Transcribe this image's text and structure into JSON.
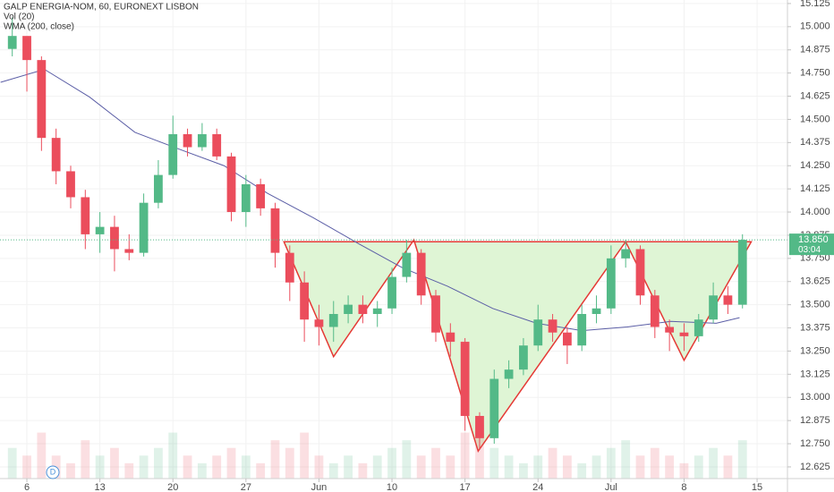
{
  "chart_data": {
    "type": "candlestick",
    "title": "GALP ENERGIA-NOM, 60, EURONEXT LISBON",
    "indicators": [
      "Vol (20)",
      "WMA (200, close)"
    ],
    "xlim": [
      -1.84,
      52.08
    ],
    "ylim": [
      12.562,
      15.144
    ],
    "xticks": [
      {
        "value": 0,
        "label": "6"
      },
      {
        "value": 5,
        "label": "13"
      },
      {
        "value": 10,
        "label": "20"
      },
      {
        "value": 15,
        "label": "27"
      },
      {
        "value": 20,
        "label": "Jun"
      },
      {
        "value": 25,
        "label": "10"
      },
      {
        "value": 30,
        "label": "17"
      },
      {
        "value": 35,
        "label": "24"
      },
      {
        "value": 40,
        "label": "Jul"
      },
      {
        "value": 45,
        "label": "8"
      },
      {
        "value": 50,
        "label": "15"
      }
    ],
    "yticks": [
      {
        "value": 12.625,
        "label": "12.625"
      },
      {
        "value": 12.75,
        "label": "12.750"
      },
      {
        "value": 12.875,
        "label": "12.875"
      },
      {
        "value": 13,
        "label": "13.000"
      },
      {
        "value": 13.125,
        "label": "13.125"
      },
      {
        "value": 13.25,
        "label": "13.250"
      },
      {
        "value": 13.375,
        "label": "13.375"
      },
      {
        "value": 13.5,
        "label": "13.500"
      },
      {
        "value": 13.625,
        "label": "13.625"
      },
      {
        "value": 13.75,
        "label": "13.750"
      },
      {
        "value": 13.875,
        "label": "13.875"
      },
      {
        "value": 14,
        "label": "14.000"
      },
      {
        "value": 14.125,
        "label": "14.125"
      },
      {
        "value": 14.25,
        "label": "14.250"
      },
      {
        "value": 14.375,
        "label": "14.375"
      },
      {
        "value": 14.5,
        "label": "14.500"
      },
      {
        "value": 14.625,
        "label": "14.625"
      },
      {
        "value": 14.75,
        "label": "14.750"
      },
      {
        "value": 14.875,
        "label": "14.875"
      },
      {
        "value": 15,
        "label": "15.000"
      },
      {
        "value": 15.125,
        "label": "15.125"
      }
    ],
    "up_color": "#53b987",
    "down_color": "#eb4d5c",
    "candles": {
      "x": [
        -1,
        0,
        1,
        2,
        3,
        4,
        5,
        6,
        7,
        8,
        9,
        10,
        11,
        12,
        13,
        14,
        15,
        16,
        17,
        18,
        19,
        20,
        21,
        22,
        23,
        24,
        25,
        26,
        27,
        28,
        29,
        30,
        31,
        32,
        33,
        34,
        35,
        36,
        37,
        38,
        39,
        40,
        41,
        42,
        43,
        44,
        45,
        46,
        47,
        48,
        49
      ],
      "open": [
        14.88,
        14.95,
        14.82,
        14.4,
        14.22,
        14.08,
        13.88,
        13.92,
        13.8,
        13.78,
        14.05,
        14.2,
        14.42,
        14.35,
        14.42,
        14.3,
        14.0,
        14.15,
        14.02,
        13.78,
        13.62,
        13.42,
        13.38,
        13.45,
        13.5,
        13.45,
        13.48,
        13.65,
        13.78,
        13.55,
        13.35,
        13.3,
        12.9,
        12.78,
        13.1,
        13.15,
        13.28,
        13.42,
        13.35,
        13.28,
        13.45,
        13.48,
        13.75,
        13.8,
        13.55,
        13.38,
        13.35,
        13.33,
        13.42,
        13.55,
        13.5
      ],
      "high": [
        15.05,
        14.86,
        14.84,
        14.45,
        14.25,
        14.12,
        14.0,
        13.98,
        13.88,
        14.1,
        14.28,
        14.52,
        14.45,
        14.48,
        14.45,
        14.32,
        14.2,
        14.18,
        14.05,
        13.82,
        13.68,
        13.5,
        13.52,
        13.55,
        13.55,
        13.52,
        13.7,
        13.85,
        13.8,
        13.58,
        13.4,
        13.32,
        12.92,
        13.15,
        13.2,
        13.32,
        13.5,
        13.45,
        13.38,
        13.5,
        13.55,
        13.82,
        13.85,
        13.82,
        13.58,
        13.42,
        13.4,
        13.45,
        13.62,
        13.6,
        13.88
      ],
      "low": [
        14.84,
        14.65,
        14.33,
        14.15,
        14.02,
        13.8,
        13.78,
        13.68,
        13.74,
        13.76,
        14.02,
        14.18,
        14.3,
        14.33,
        14.28,
        13.95,
        13.92,
        13.98,
        13.7,
        13.52,
        13.3,
        13.28,
        13.3,
        13.4,
        13.4,
        13.38,
        13.45,
        13.62,
        13.5,
        13.3,
        13.22,
        12.82,
        12.72,
        12.75,
        13.05,
        13.12,
        13.25,
        13.3,
        13.18,
        13.25,
        13.4,
        13.45,
        13.7,
        13.5,
        13.32,
        13.25,
        13.25,
        13.3,
        13.4,
        13.45,
        13.48
      ],
      "close": [
        14.95,
        14.82,
        14.4,
        14.22,
        14.08,
        13.88,
        13.92,
        13.8,
        13.78,
        14.05,
        14.2,
        14.42,
        14.35,
        14.42,
        14.3,
        14.0,
        14.15,
        14.02,
        13.78,
        13.62,
        13.42,
        13.38,
        13.45,
        13.5,
        13.45,
        13.48,
        13.65,
        13.78,
        13.55,
        13.35,
        13.3,
        12.9,
        12.78,
        13.1,
        13.15,
        13.28,
        13.42,
        13.35,
        13.28,
        13.45,
        13.48,
        13.75,
        13.8,
        13.55,
        13.38,
        13.35,
        13.33,
        13.42,
        13.55,
        13.5,
        13.85
      ],
      "volume": [
        4,
        3,
        6,
        3,
        2,
        5,
        3,
        4,
        2,
        3,
        4,
        6,
        3,
        2,
        3,
        4,
        3,
        2,
        5,
        4,
        6,
        3,
        2,
        3,
        2,
        3,
        4,
        5,
        3,
        4,
        3,
        6,
        7,
        4,
        3,
        2,
        3,
        4,
        3,
        2,
        3,
        4,
        5,
        3,
        4,
        3,
        2,
        3,
        4,
        3,
        5
      ]
    },
    "wma": {
      "name": "WMA (200, close)",
      "color": "#5b5ea6",
      "x": [
        -1.8,
        1.2,
        4.3,
        7.4,
        10.4,
        13.5,
        16.5,
        19.6,
        22.7,
        25.7,
        28.8,
        31.9,
        34.9,
        38.0,
        41.1,
        44.1,
        47.2,
        48.8
      ],
      "values": [
        14.7,
        14.77,
        14.62,
        14.43,
        14.34,
        14.25,
        14.1,
        13.97,
        13.83,
        13.7,
        13.6,
        13.48,
        13.4,
        13.36,
        13.38,
        13.41,
        13.4,
        13.43
      ]
    },
    "pattern": {
      "color": "#e53935",
      "fill": "#dff5d5",
      "x": [
        17.6,
        21.0,
        26.5,
        30.9,
        41.0,
        45.0,
        49.6
      ],
      "y": [
        13.84,
        13.22,
        13.85,
        12.71,
        13.84,
        13.2,
        13.84
      ]
    },
    "last_price": {
      "value": 13.85,
      "label": "13.850"
    },
    "countdown": "03:04",
    "session_marker": "D"
  }
}
